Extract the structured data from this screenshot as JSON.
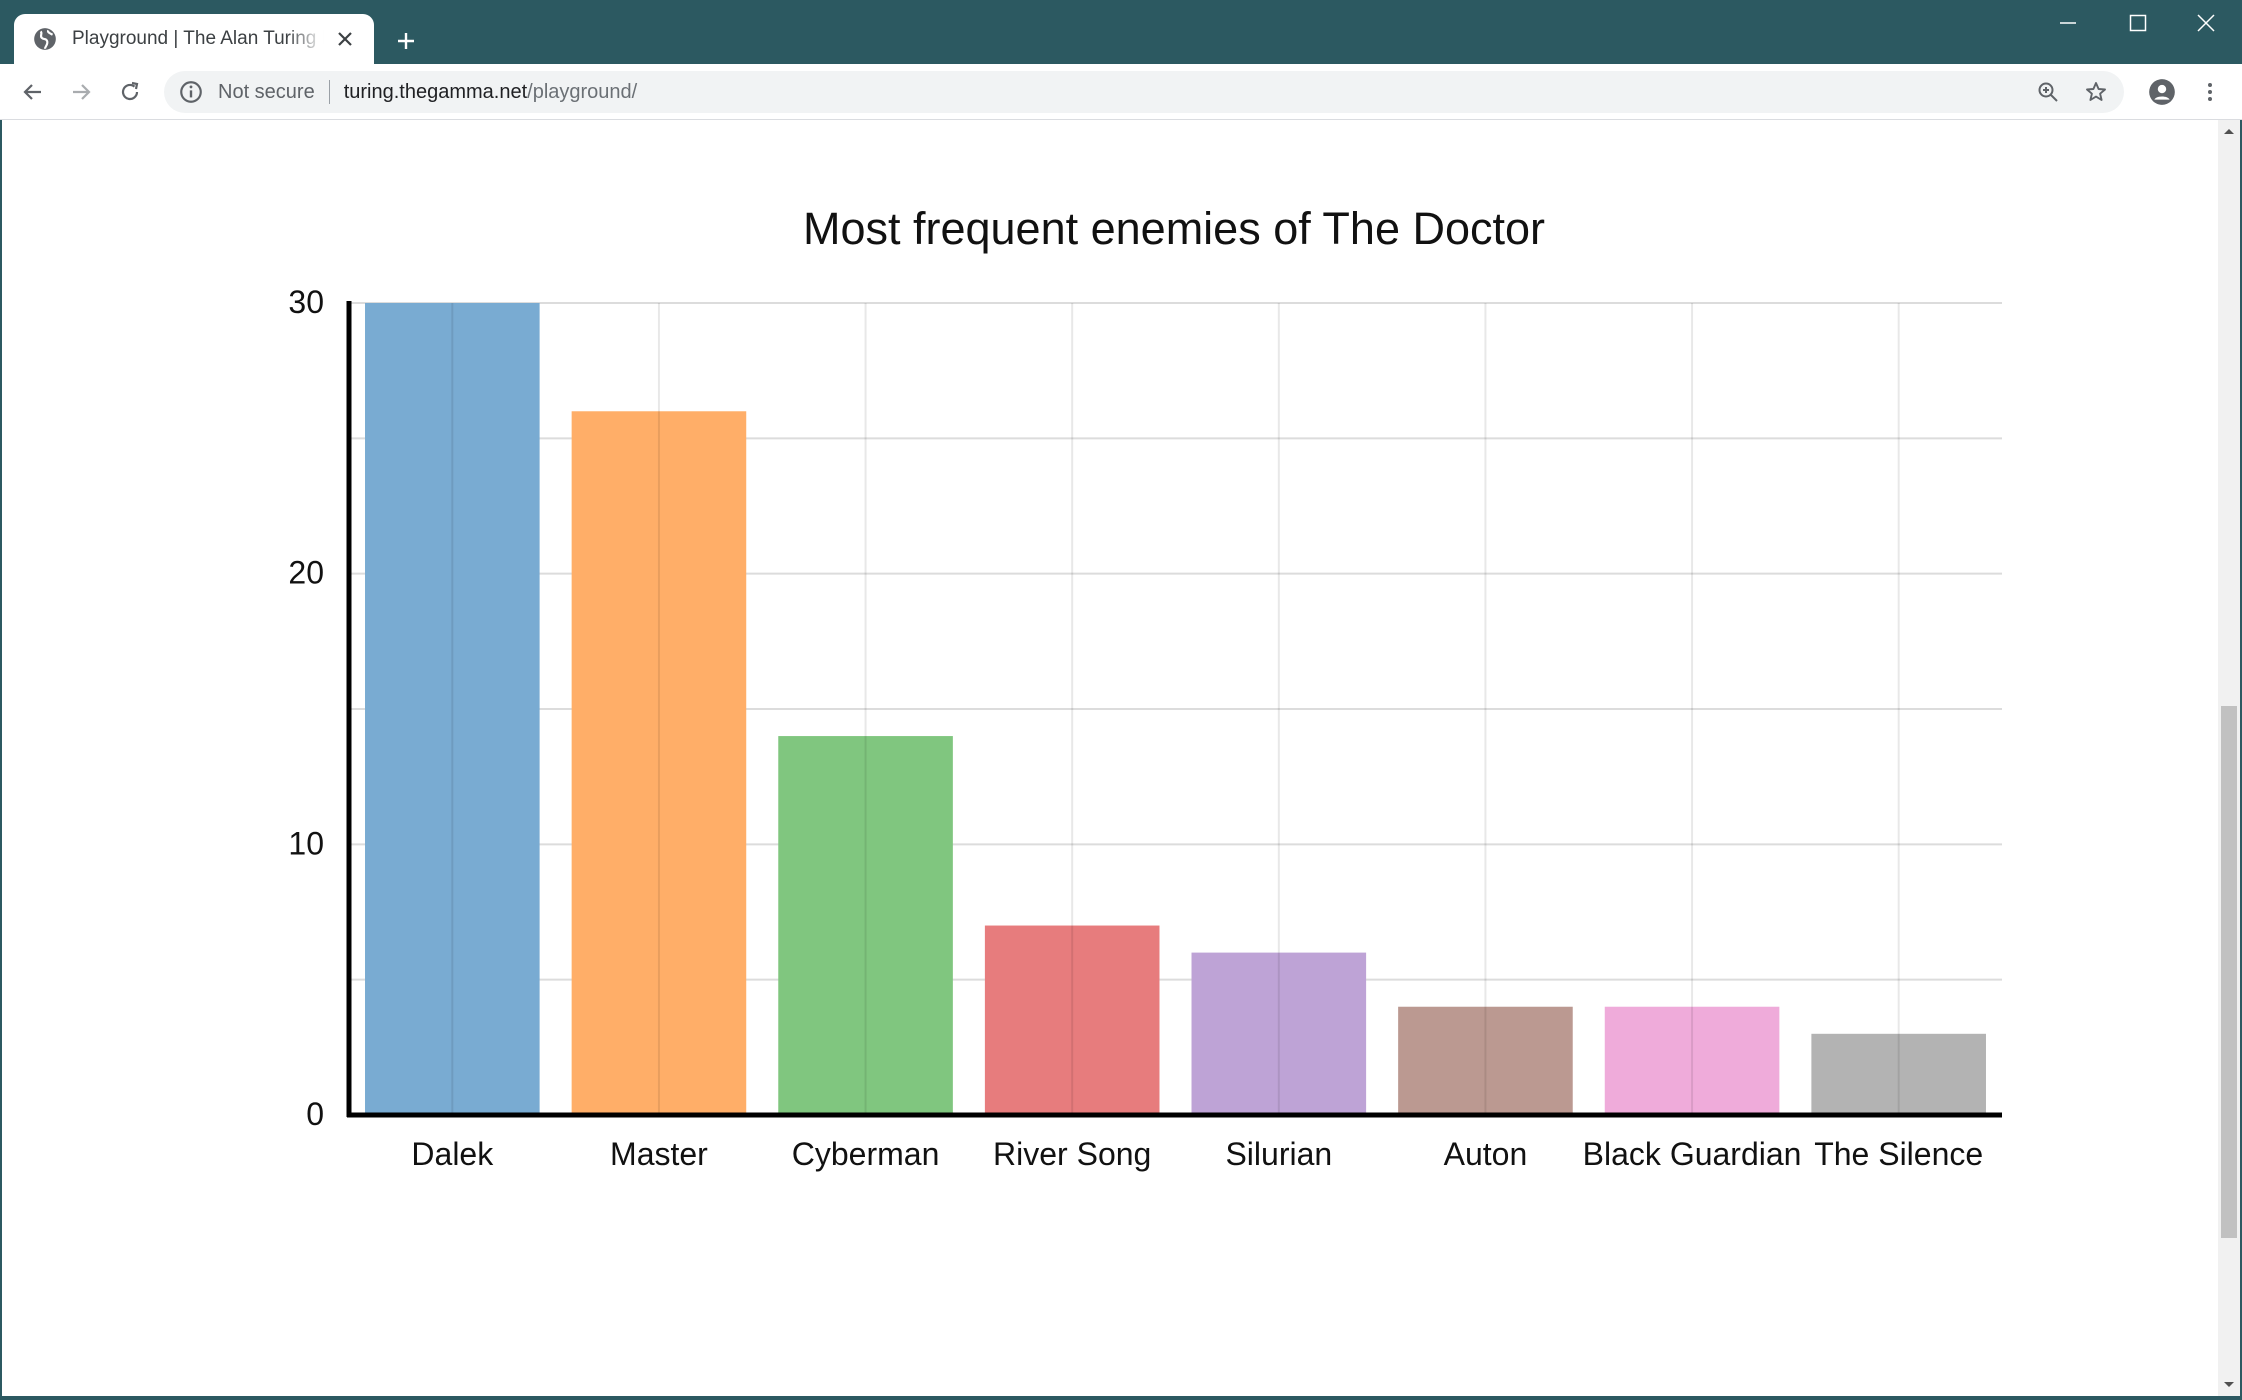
{
  "browser": {
    "tab": {
      "title": "Playground | The Alan Turing Institute",
      "favicon": "globe-icon",
      "close": "close-icon"
    },
    "new_tab": "plus-icon",
    "window_controls": [
      "minimize-icon",
      "maximize-icon",
      "close-icon"
    ],
    "nav": [
      "back-arrow-icon",
      "forward-arrow-icon",
      "reload-icon"
    ],
    "address": {
      "security_label": "Not secure",
      "url_host": "turing.thegamma.net",
      "url_path": "/playground/"
    },
    "toolbar_icons": [
      "zoom-icon",
      "star-icon",
      "profile-icon",
      "menu-icon"
    ]
  },
  "chart_data": {
    "type": "bar",
    "title": "Most frequent enemies of The Doctor",
    "xlabel": "",
    "ylabel": "",
    "categories": [
      "Dalek",
      "Master",
      "Cyberman",
      "River Song",
      "Silurian",
      "Auton",
      "Black Guardian",
      "The Silence"
    ],
    "values": [
      30,
      26,
      14,
      7,
      6,
      4,
      4,
      3
    ],
    "ylim": [
      0,
      30
    ],
    "yticks": [
      "0",
      "10",
      "20",
      "30"
    ],
    "grid": true,
    "legend": "none",
    "colors": [
      "#79abd2",
      "#ffae68",
      "#80c67f",
      "#e77c7d",
      "#bea3d6",
      "#bb9991",
      "#efabda",
      "#b3b3b3"
    ]
  }
}
